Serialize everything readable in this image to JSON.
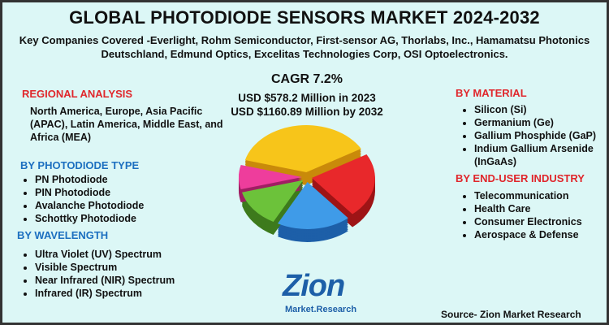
{
  "header": {
    "title": "GLOBAL PHOTODIODE SENSORS MARKET 2024-2032",
    "subtitle": "Key Companies Covered -Everlight, Rohm Semiconductor, First-sensor AG, Thorlabs, Inc., Hamamatsu Photonics Deutschland, Edmund Optics, Excelitas Technologies Corp, OSI Optoelectronics."
  },
  "center": {
    "cagr": "CAGR 7.2%",
    "value_2023": "USD $578.2 Million in 2023",
    "value_2032": "USD $1160.89 Million by 2032"
  },
  "regional": {
    "heading": "REGIONAL ANALYSIS",
    "text": "North America, Europe, Asia Pacific (APAC), Latin America, Middle East, and Africa (MEA)"
  },
  "photodiode_type": {
    "heading": "BY PHOTODIODE TYPE",
    "items": [
      "PN Photodiode",
      "PIN Photodiode",
      "Avalanche Photodiode",
      "Schottky Photodiode"
    ]
  },
  "wavelength": {
    "heading": "BY WAVELENGTH",
    "items": [
      "Ultra Violet (UV) Spectrum",
      "Visible Spectrum",
      "Near Infrared (NIR) Spectrum",
      "Infrared (IR) Spectrum"
    ]
  },
  "material": {
    "heading": "BY MATERIAL",
    "items": [
      "Silicon (Si)",
      "Germanium (Ge)",
      "Gallium Phosphide (GaP)",
      "Indium Gallium Arsenide (InGaAs)"
    ]
  },
  "end_user": {
    "heading": "BY END-USER INDUSTRY",
    "items": [
      "Telecommunication",
      "Health Care",
      "Consumer Electronics",
      "Aerospace & Defense"
    ]
  },
  "logo": {
    "brand": "Zion",
    "tagline": "Market.Research"
  },
  "source": "Source- Zion Market Research"
}
